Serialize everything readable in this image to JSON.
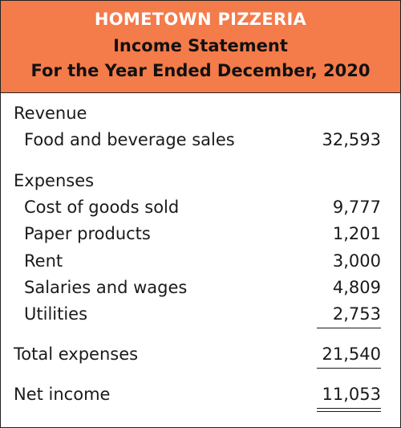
{
  "header": {
    "company": "HOMETOWN PIZZERIA",
    "statement": "Income Statement",
    "period": "For the Year Ended December, 2020",
    "background_color": "#f47b4a"
  },
  "revenue": {
    "heading": "Revenue",
    "items": [
      {
        "label": "Food and beverage sales",
        "amount": "32,593"
      }
    ]
  },
  "expenses": {
    "heading": "Expenses",
    "items": [
      {
        "label": "Cost of goods sold",
        "amount": "9,777"
      },
      {
        "label": "Paper products",
        "amount": "1,201"
      },
      {
        "label": "Rent",
        "amount": "3,000"
      },
      {
        "label": "Salaries and wages",
        "amount": "4,809"
      },
      {
        "label": "Utilities",
        "amount": "2,753"
      }
    ]
  },
  "totals": {
    "total_expenses_label": "Total expenses",
    "total_expenses_amount": "21,540",
    "net_income_label": "Net income",
    "net_income_amount": "11,053"
  }
}
